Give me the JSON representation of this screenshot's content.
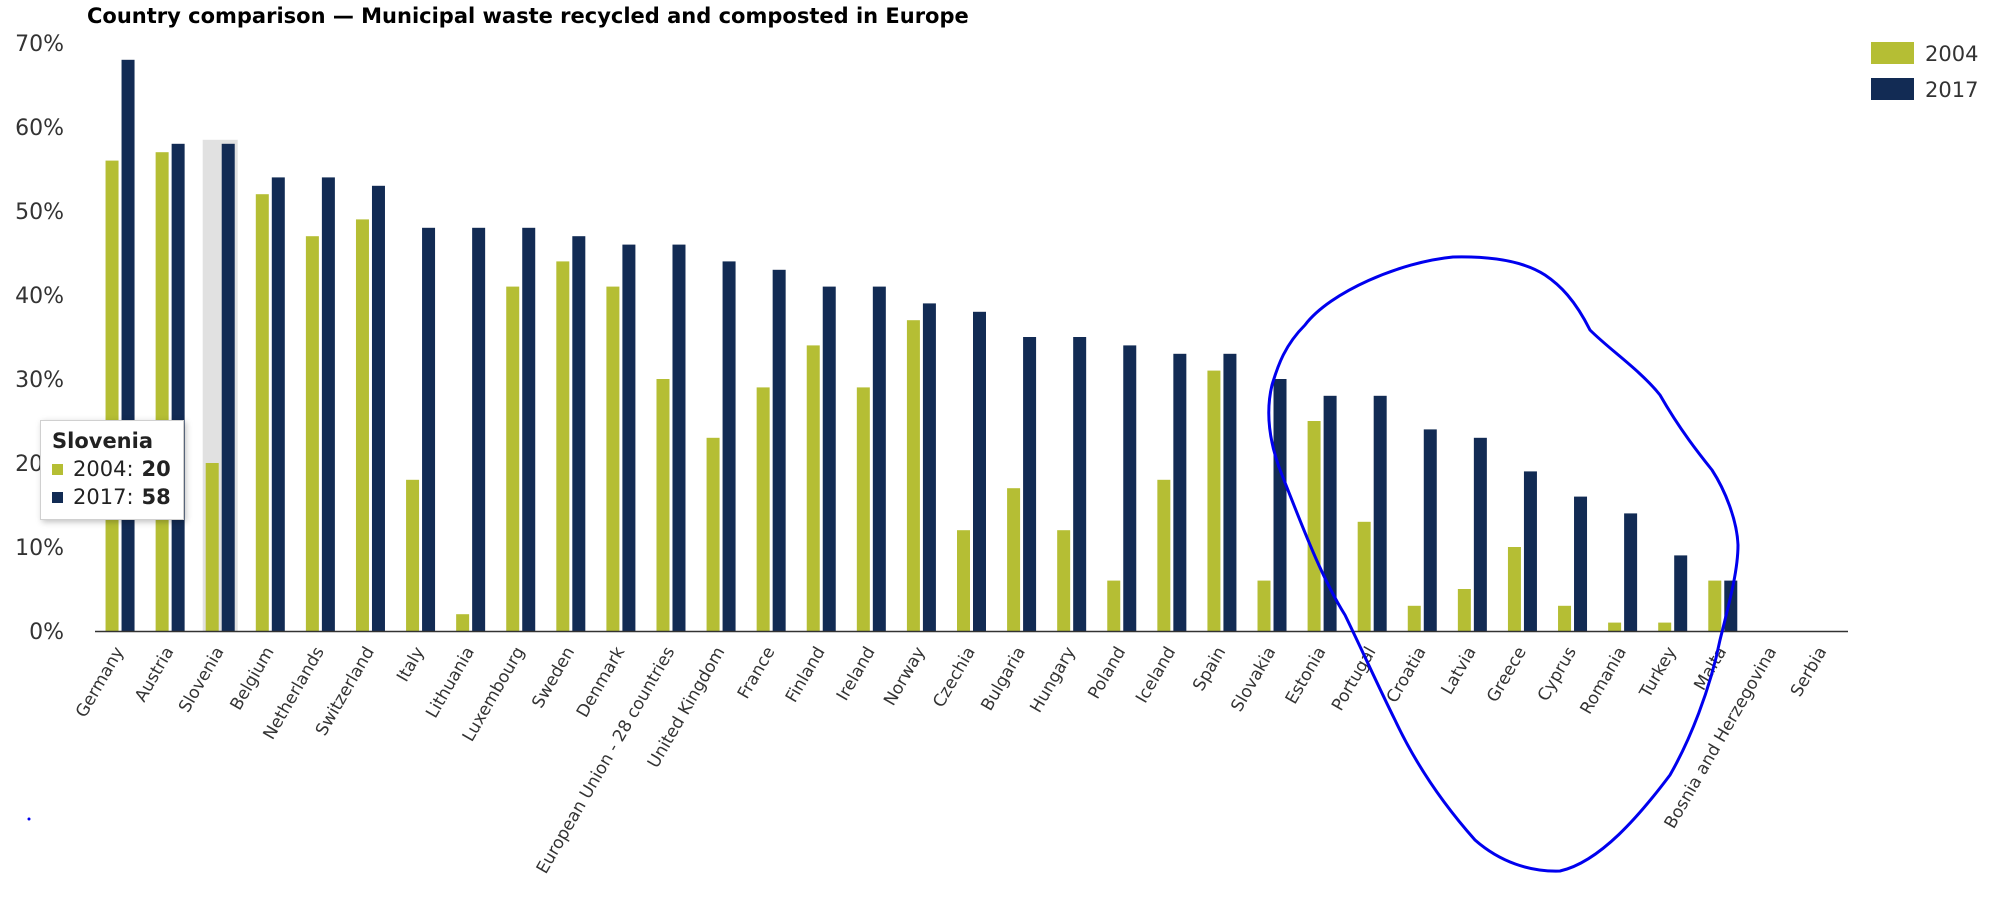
{
  "chart_data": {
    "type": "bar",
    "title": "Country comparison — Municipal waste recycled and composted in Europe",
    "xlabel": "",
    "ylabel": "",
    "ylim": [
      0,
      70
    ],
    "y_ticks": [
      "0%",
      "10%",
      "20%",
      "30%",
      "40%",
      "50%",
      "60%",
      "70%"
    ],
    "grid": false,
    "legend_position": "top-right",
    "categories": [
      "Germany",
      "Austria",
      "Slovenia",
      "Belgium",
      "Netherlands",
      "Switzerland",
      "Italy",
      "Lithuania",
      "Luxembourg",
      "Sweden",
      "Denmark",
      "European Union - 28 countries",
      "United Kingdom",
      "France",
      "Finland",
      "Ireland",
      "Norway",
      "Czechia",
      "Bulgaria",
      "Hungary",
      "Poland",
      "Iceland",
      "Spain",
      "Slovakia",
      "Estonia",
      "Portugal",
      "Croatia",
      "Latvia",
      "Greece",
      "Cyprus",
      "Romania",
      "Turkey",
      "Malta",
      "Bosnia and Herzegovina",
      "Serbia"
    ],
    "series": [
      {
        "name": "2004",
        "color": "#b5be34",
        "values": [
          56,
          57,
          20,
          52,
          47,
          49,
          18,
          2,
          41,
          44,
          41,
          30,
          23,
          29,
          34,
          29,
          37,
          12,
          17,
          12,
          6,
          18,
          31,
          6,
          25,
          13,
          3,
          5,
          10,
          3,
          1,
          1,
          6,
          null,
          null
        ]
      },
      {
        "name": "2017",
        "color": "#122b54",
        "values": [
          68,
          58,
          58,
          54,
          54,
          53,
          48,
          48,
          48,
          47,
          46,
          46,
          44,
          43,
          41,
          41,
          39,
          38,
          35,
          35,
          34,
          33,
          33,
          30,
          28,
          28,
          24,
          23,
          19,
          16,
          14,
          9,
          6,
          null,
          null
        ]
      }
    ],
    "highlighted_category": "Slovenia",
    "tooltip": {
      "title": "Slovenia",
      "rows": [
        {
          "label": "2004:",
          "value": "20",
          "color": "#b5be34"
        },
        {
          "label": "2017:",
          "value": "58",
          "color": "#122b54"
        }
      ]
    },
    "annotation": {
      "type": "hand-drawn circle",
      "color": "#0000ee",
      "encloses": [
        "Slovakia",
        "Estonia",
        "Portugal",
        "Croatia",
        "Latvia",
        "Greece",
        "Cyprus",
        "Romania",
        "Turkey",
        "Malta"
      ]
    }
  }
}
